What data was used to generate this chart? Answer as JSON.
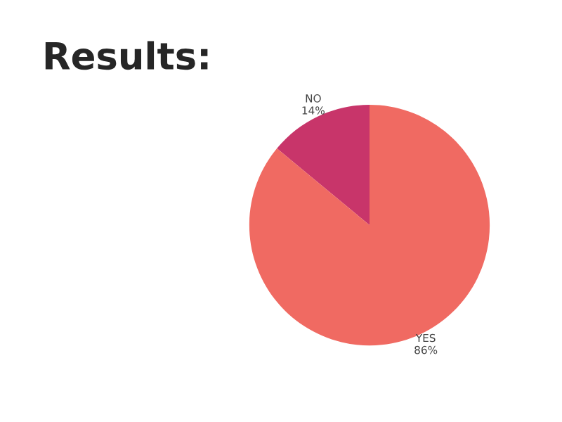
{
  "chart_data": {
    "type": "pie",
    "title": "Results:",
    "categories": [
      "NO",
      "YES"
    ],
    "values": [
      14,
      86
    ],
    "value_labels": [
      "14%",
      "86%"
    ],
    "colors": [
      "#c8356a",
      "#f06a62"
    ]
  }
}
